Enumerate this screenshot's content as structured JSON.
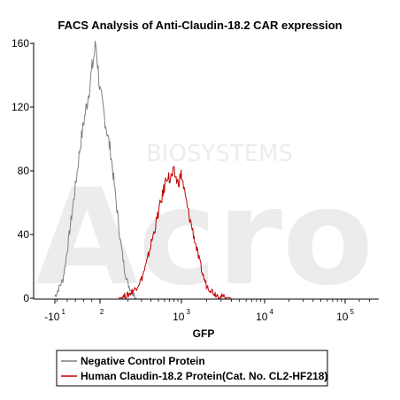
{
  "chart_data": {
    "type": "line",
    "title": "FACS Analysis of Anti-Claudin-18.2 CAR expression",
    "xlabel": "GFP",
    "ylabel": "",
    "x_scale": "biexponential",
    "x_ticks": [
      {
        "base": "-10",
        "exp": "1",
        "value": -10
      },
      {
        "base": "",
        "exp": "2",
        "value": 100
      },
      {
        "base": "10",
        "exp": "3",
        "value": 1000
      },
      {
        "base": "10",
        "exp": "4",
        "value": 10000
      },
      {
        "base": "10",
        "exp": "5",
        "value": 100000
      }
    ],
    "y_ticks": [
      "0",
      "40",
      "80",
      "120",
      "160"
    ],
    "ylim": [
      0,
      160
    ],
    "grid": false,
    "legend_position": "bottom",
    "series": [
      {
        "name": "Negative Control Protein",
        "color": "#7f7f7f",
        "x": [
          -10,
          10,
          20,
          30,
          40,
          50,
          60,
          70,
          80,
          90,
          100,
          120,
          140,
          160,
          180,
          200,
          230,
          260
        ],
        "y": [
          1,
          12,
          30,
          50,
          70,
          92,
          110,
          125,
          143,
          160,
          130,
          90,
          60,
          35,
          18,
          9,
          3,
          0
        ]
      },
      {
        "name": "Human Claudin-18.2 Protein(Cat. No. CL2-HF218)",
        "color": "#c00000",
        "x": [
          150,
          200,
          250,
          300,
          350,
          400,
          450,
          500,
          550,
          600,
          650,
          700,
          800,
          900,
          1000,
          1100,
          1200,
          1400,
          1600,
          1800,
          2000,
          2500,
          3000,
          4000
        ],
        "y": [
          0,
          2,
          6,
          12,
          22,
          34,
          44,
          54,
          62,
          70,
          78,
          74,
          79,
          72,
          78,
          65,
          55,
          40,
          26,
          15,
          8,
          3,
          1,
          0
        ]
      }
    ]
  },
  "watermark": {
    "text": "BIOSYSTEMS",
    "logo": "Acro"
  }
}
